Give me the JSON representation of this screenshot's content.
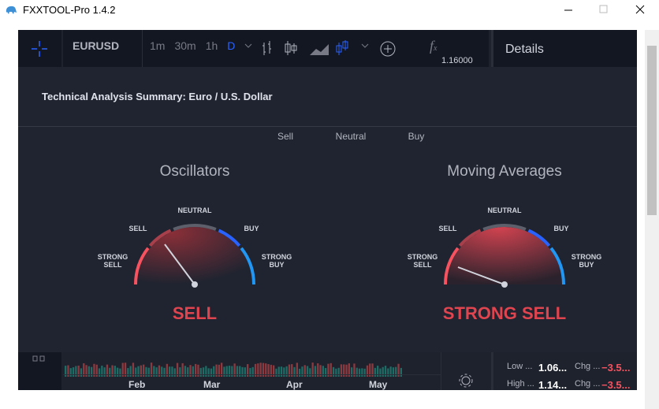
{
  "window": {
    "title": "FXXTOOL-Pro 1.4.2"
  },
  "toolbar": {
    "symbol": "EURUSD",
    "intervals": [
      "1m",
      "30m",
      "1h",
      "D"
    ]
  },
  "price_axis": {
    "top_label": "1.16000"
  },
  "details": {
    "title": "Details",
    "rows": [
      [
        "Low ...",
        "1.06...",
        "Chg ...",
        "−3.5..."
      ],
      [
        "High ...",
        "1.14...",
        "Chg ...",
        "−3.5..."
      ]
    ]
  },
  "chart": {
    "months": [
      "Feb",
      "Mar",
      "Apr",
      "May"
    ]
  },
  "summary": {
    "title": "Technical Analysis Summary: Euro / U.S. Dollar",
    "tabs": [
      "Sell",
      "Neutral",
      "Buy"
    ],
    "gauges": [
      {
        "title": "Oscillators",
        "labels": {
          "strong_sell": [
            "STRONG",
            "SELL"
          ],
          "sell": "SELL",
          "neutral": "NEUTRAL",
          "buy": "BUY",
          "strong_buy": [
            "STRONG",
            "BUY"
          ]
        },
        "result": "SELL"
      },
      {
        "title": "Moving Averages",
        "labels": {
          "strong_sell": [
            "STRONG",
            "SELL"
          ],
          "sell": "SELL",
          "neutral": "NEUTRAL",
          "buy": "BUY",
          "strong_buy": [
            "STRONG",
            "BUY"
          ]
        },
        "result": "STRONG SELL"
      }
    ]
  }
}
